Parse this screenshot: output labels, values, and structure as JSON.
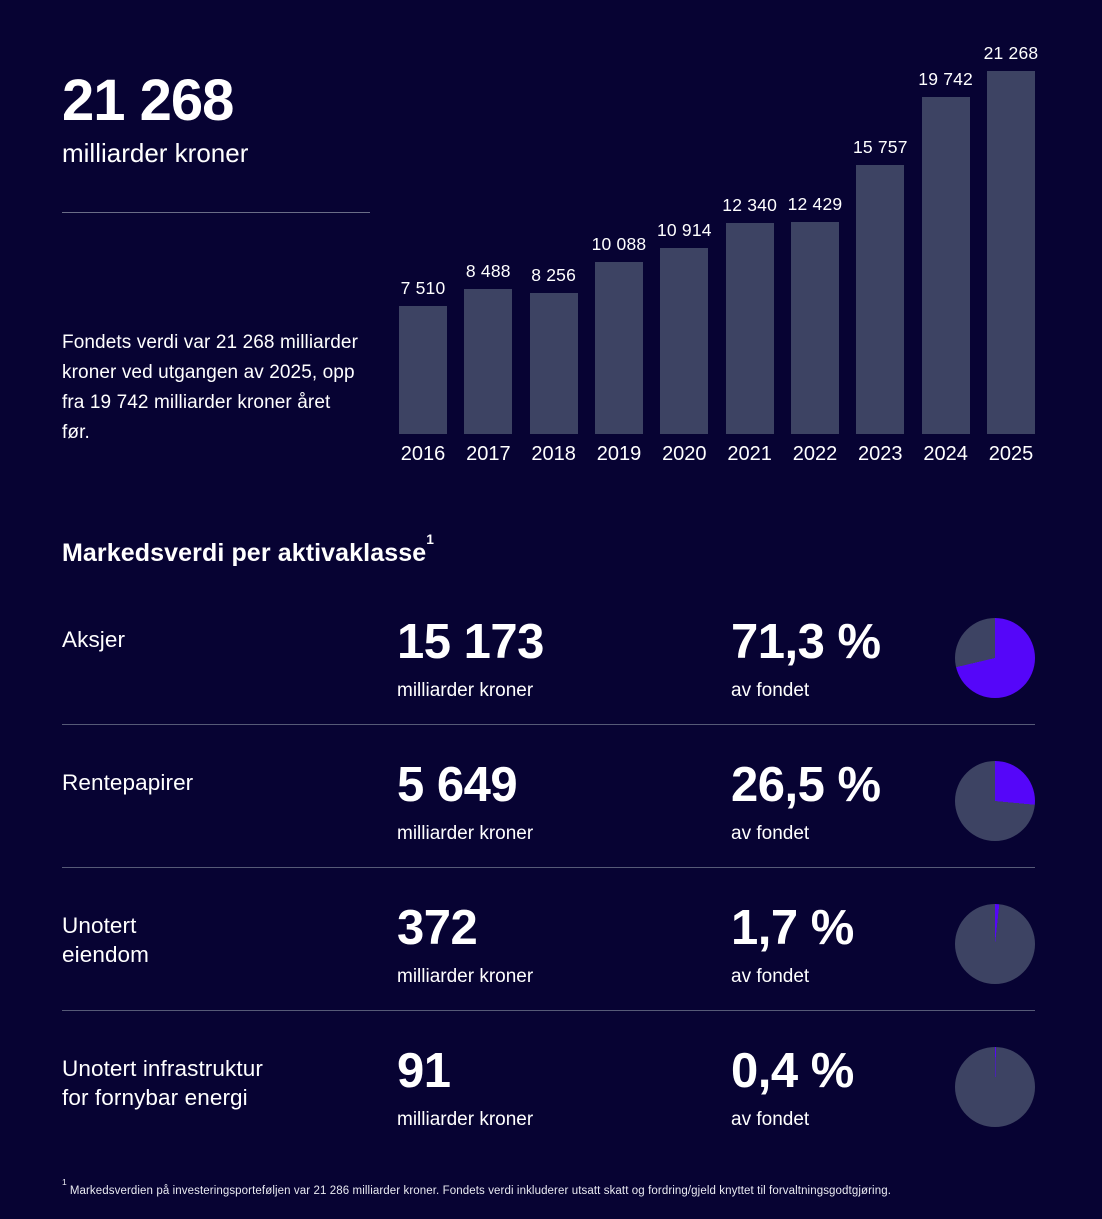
{
  "header": {
    "big_number": "21 268",
    "big_number_unit": "milliarder kroner",
    "description": "Fondets verdi var 21 268 milliarder kroner ved utgangen av 2025, opp fra 19 742 milliarder kroner året før."
  },
  "chart_data": [
    {
      "type": "bar",
      "categories": [
        "2016",
        "2017",
        "2018",
        "2019",
        "2020",
        "2021",
        "2022",
        "2023",
        "2024",
        "2025"
      ],
      "values": [
        7510,
        8488,
        8256,
        10088,
        10914,
        12340,
        12429,
        15757,
        19742,
        21268
      ],
      "value_labels": [
        "7 510",
        "8 488",
        "8 256",
        "10 088",
        "10 914",
        "12 340",
        "12 429",
        "15 757",
        "19 742",
        "21 268"
      ],
      "title": "",
      "xlabel": "",
      "ylabel": "milliarder kroner",
      "ylim": [
        0,
        21268
      ],
      "grid": false,
      "legend": false,
      "bar_color": "#3d4363",
      "label_position": "above-bar"
    },
    {
      "type": "pie",
      "note": "rendered as four separate single-share pies, one per asset class row",
      "categories": [
        "Aksjer",
        "Rentepapirer",
        "Unotert eiendom",
        "Unotert infrastruktur for fornybar energi"
      ],
      "values": [
        71.3,
        26.5,
        1.7,
        0.4
      ],
      "highlight_color": "#5506f9",
      "remainder_color": "#3d4363",
      "start_angle_deg": 0,
      "direction": "clockwise"
    }
  ],
  "table": {
    "title": "Markedsverdi per aktivaklasse",
    "title_superscript": "1",
    "unit_label": "milliarder kroner",
    "share_label": "av fondet",
    "rows": [
      {
        "label": "Aksjer",
        "value": "15 173",
        "share": "71,3 %",
        "share_pct": 71.3
      },
      {
        "label": "Rentepapirer",
        "value": "5 649",
        "share": "26,5 %",
        "share_pct": 26.5
      },
      {
        "label": "Unotert\neiendom",
        "value": "372",
        "share": "1,7 %",
        "share_pct": 1.7
      },
      {
        "label": "Unotert infrastruktur\nfor fornybar energi",
        "value": "91",
        "share": "0,4 %",
        "share_pct": 0.4
      }
    ]
  },
  "footnote_marker": "1",
  "footnote": "Markedsverdien på investeringsporteføljen var 21 286 milliarder kroner. Fondets verdi inkluderer utsatt skatt og fordring/gjeld knyttet til forvaltningsgodtgjøring.",
  "colors": {
    "background": "#070333",
    "bar": "#3d4363",
    "pie_highlight": "#5506f9",
    "pie_remainder": "#3d4363",
    "text": "#ffffff",
    "divider": "#565a77"
  }
}
